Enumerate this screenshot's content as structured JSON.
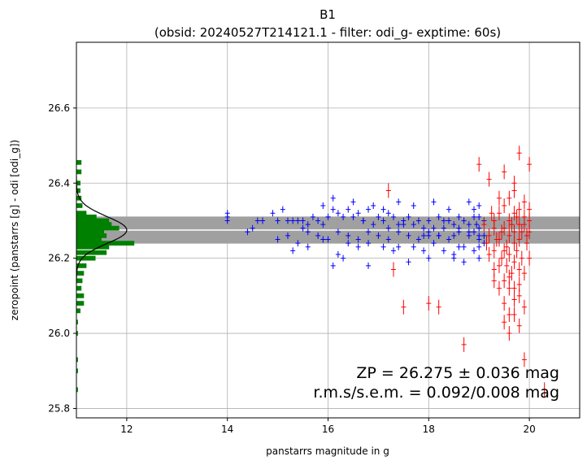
{
  "chart_data": {
    "type": "scatter",
    "title": "B1",
    "subtitle": "(obsid: 20240527T214121.1 - filter: odi_g- exptime: 60s)",
    "xlabel": "panstarrs magnitude in g",
    "ylabel": "zeropoint (panstarrs [g] - odi [odi_g])",
    "xlim": [
      11.0,
      21.0
    ],
    "ylim": [
      25.775,
      26.775
    ],
    "x_ticks": [
      12,
      14,
      16,
      18,
      20
    ],
    "y_ticks": [
      25.8,
      26.0,
      26.2,
      26.4,
      26.6
    ],
    "x_tick_labels": [
      "12",
      "14",
      "16",
      "18",
      "20"
    ],
    "y_tick_labels": [
      "25.8",
      "26.0",
      "26.2",
      "26.4",
      "26.6"
    ],
    "grid": true,
    "zp": 26.275,
    "zp_band": [
      26.239,
      26.311
    ],
    "annotations": {
      "zp_text": "ZP = 26.275 ± 0.036 mag",
      "rms_text": "r.m.s/s.e.m. = 0.092/0.008 mag"
    },
    "histogram": {
      "color": "#008000",
      "bin_width": 0.0125,
      "bins": [
        {
          "y": 25.85,
          "extent": 0.03
        },
        {
          "y": 25.9,
          "extent": 0.03
        },
        {
          "y": 25.93,
          "extent": 0.03
        },
        {
          "y": 26.0,
          "extent": 0.03
        },
        {
          "y": 26.03,
          "extent": 0.03
        },
        {
          "y": 26.06,
          "extent": 0.08
        },
        {
          "y": 26.08,
          "extent": 0.15
        },
        {
          "y": 26.1,
          "extent": 0.15
        },
        {
          "y": 26.12,
          "extent": 0.1
        },
        {
          "y": 26.14,
          "extent": 0.12
        },
        {
          "y": 26.16,
          "extent": 0.15
        },
        {
          "y": 26.18,
          "extent": 0.2
        },
        {
          "y": 26.2,
          "extent": 0.38
        },
        {
          "y": 26.215,
          "extent": 0.6
        },
        {
          "y": 26.23,
          "extent": 0.65
        },
        {
          "y": 26.24,
          "extent": 1.15
        },
        {
          "y": 26.25,
          "extent": 0.5
        },
        {
          "y": 26.26,
          "extent": 0.6
        },
        {
          "y": 26.27,
          "extent": 0.55
        },
        {
          "y": 26.28,
          "extent": 0.85
        },
        {
          "y": 26.29,
          "extent": 0.7
        },
        {
          "y": 26.3,
          "extent": 0.65
        },
        {
          "y": 26.31,
          "extent": 0.4
        },
        {
          "y": 26.32,
          "extent": 0.2
        },
        {
          "y": 26.34,
          "extent": 0.12
        },
        {
          "y": 26.36,
          "extent": 0.1
        },
        {
          "y": 26.38,
          "extent": 0.08
        },
        {
          "y": 26.4,
          "extent": 0.08
        },
        {
          "y": 26.43,
          "extent": 0.1
        },
        {
          "y": 26.455,
          "extent": 0.1
        }
      ]
    },
    "gaussian": {
      "mu": 26.275,
      "sigma": 0.036,
      "peak_extent": 1.0,
      "color": "#000000"
    },
    "series": [
      {
        "color": "#0000ff",
        "points": [
          [
            14.0,
            26.31
          ],
          [
            14.0,
            26.32
          ],
          [
            14.0,
            26.3
          ],
          [
            14.5,
            26.28
          ],
          [
            14.6,
            26.3
          ],
          [
            14.7,
            26.3
          ],
          [
            14.9,
            26.32
          ],
          [
            15.0,
            26.3
          ],
          [
            15.2,
            26.3
          ],
          [
            15.3,
            26.3
          ],
          [
            15.4,
            26.3
          ],
          [
            15.5,
            26.28
          ],
          [
            15.6,
            26.29
          ],
          [
            15.7,
            26.31
          ],
          [
            15.8,
            26.3
          ],
          [
            15.9,
            26.29
          ],
          [
            16.0,
            26.31
          ],
          [
            16.1,
            26.33
          ],
          [
            16.2,
            26.32
          ],
          [
            16.3,
            26.31
          ],
          [
            16.4,
            26.33
          ],
          [
            16.5,
            26.31
          ],
          [
            16.6,
            26.32
          ],
          [
            16.7,
            26.3
          ],
          [
            16.8,
            26.33
          ],
          [
            16.9,
            26.29
          ],
          [
            17.0,
            26.31
          ],
          [
            17.1,
            26.3
          ],
          [
            17.2,
            26.32
          ],
          [
            17.3,
            26.31
          ],
          [
            17.4,
            26.29
          ],
          [
            17.5,
            26.3
          ],
          [
            17.6,
            26.31
          ],
          [
            17.7,
            26.29
          ],
          [
            17.8,
            26.3
          ],
          [
            17.9,
            26.28
          ],
          [
            18.0,
            26.3
          ],
          [
            18.1,
            26.28
          ],
          [
            18.2,
            26.31
          ],
          [
            18.3,
            26.28
          ],
          [
            18.4,
            26.3
          ],
          [
            18.5,
            26.29
          ],
          [
            18.6,
            26.28
          ],
          [
            18.7,
            26.3
          ],
          [
            18.8,
            26.29
          ],
          [
            18.9,
            26.31
          ],
          [
            19.0,
            26.28
          ],
          [
            19.1,
            26.3
          ],
          [
            15.0,
            26.25
          ],
          [
            15.2,
            26.26
          ],
          [
            15.4,
            26.24
          ],
          [
            15.6,
            26.27
          ],
          [
            15.8,
            26.26
          ],
          [
            16.0,
            26.25
          ],
          [
            16.2,
            26.27
          ],
          [
            16.4,
            26.26
          ],
          [
            16.6,
            26.25
          ],
          [
            16.8,
            26.27
          ],
          [
            17.0,
            26.26
          ],
          [
            17.2,
            26.25
          ],
          [
            17.4,
            26.27
          ],
          [
            17.6,
            26.26
          ],
          [
            17.8,
            26.25
          ],
          [
            18.0,
            26.27
          ],
          [
            18.2,
            26.26
          ],
          [
            18.4,
            26.25
          ],
          [
            18.6,
            26.27
          ],
          [
            18.8,
            26.26
          ],
          [
            19.0,
            26.25
          ],
          [
            15.3,
            26.22
          ],
          [
            15.6,
            26.23
          ],
          [
            15.9,
            26.25
          ],
          [
            16.2,
            26.21
          ],
          [
            16.4,
            26.24
          ],
          [
            16.6,
            26.23
          ],
          [
            16.8,
            26.24
          ],
          [
            17.1,
            26.23
          ],
          [
            17.4,
            26.23
          ],
          [
            17.7,
            26.23
          ],
          [
            17.9,
            26.22
          ],
          [
            18.1,
            26.24
          ],
          [
            18.3,
            26.22
          ],
          [
            18.5,
            26.21
          ],
          [
            18.7,
            26.23
          ],
          [
            18.9,
            26.22
          ],
          [
            19.0,
            26.23
          ],
          [
            15.1,
            26.33
          ],
          [
            15.9,
            26.34
          ],
          [
            16.1,
            26.36
          ],
          [
            16.5,
            26.35
          ],
          [
            16.9,
            26.34
          ],
          [
            17.1,
            26.33
          ],
          [
            17.4,
            26.35
          ],
          [
            17.7,
            26.34
          ],
          [
            18.1,
            26.35
          ],
          [
            18.4,
            26.33
          ],
          [
            18.8,
            26.35
          ],
          [
            19.0,
            26.34
          ],
          [
            16.8,
            26.18
          ],
          [
            17.6,
            26.19
          ],
          [
            18.0,
            26.2
          ],
          [
            18.5,
            26.2
          ],
          [
            18.7,
            26.19
          ],
          [
            19.0,
            26.2
          ],
          [
            16.1,
            26.18
          ],
          [
            16.3,
            26.2
          ],
          [
            17.3,
            26.22
          ],
          [
            17.9,
            26.26
          ],
          [
            18.2,
            26.26
          ],
          [
            18.6,
            26.23
          ],
          [
            19.1,
            26.26
          ],
          [
            19.1,
            26.24
          ],
          [
            18.9,
            26.33
          ],
          [
            19.0,
            26.31
          ],
          [
            18.95,
            26.29
          ],
          [
            14.4,
            26.27
          ],
          [
            15.5,
            26.3
          ],
          [
            16.0,
            26.31
          ],
          [
            16.7,
            26.3
          ],
          [
            17.5,
            26.29
          ],
          [
            18.3,
            26.3
          ],
          [
            18.6,
            26.31
          ],
          [
            18.9,
            26.27
          ],
          [
            19.0,
            26.26
          ],
          [
            18.8,
            26.27
          ],
          [
            18.5,
            26.26
          ],
          [
            18.0,
            26.26
          ],
          [
            17.2,
            26.28
          ]
        ]
      },
      {
        "color": "#ff0000",
        "points": [
          [
            17.2,
            26.38
          ],
          [
            17.3,
            26.17
          ],
          [
            17.5,
            26.07
          ],
          [
            18.0,
            26.08
          ],
          [
            18.2,
            26.07
          ],
          [
            18.7,
            25.97
          ],
          [
            19.0,
            26.45
          ],
          [
            19.2,
            26.41
          ],
          [
            19.4,
            26.36
          ],
          [
            19.5,
            26.43
          ],
          [
            19.7,
            26.4
          ],
          [
            19.8,
            26.48
          ],
          [
            20.0,
            26.45
          ],
          [
            19.3,
            26.17
          ],
          [
            19.4,
            26.12
          ],
          [
            19.6,
            26.15
          ],
          [
            19.7,
            26.12
          ],
          [
            19.5,
            26.08
          ],
          [
            19.6,
            26.05
          ],
          [
            19.8,
            26.02
          ],
          [
            19.9,
            25.93
          ],
          [
            20.3,
            25.85
          ],
          [
            19.6,
            26.0
          ],
          [
            19.5,
            26.03
          ],
          [
            19.7,
            26.05
          ],
          [
            19.8,
            26.1
          ],
          [
            19.9,
            26.07
          ],
          [
            19.3,
            26.22
          ],
          [
            19.4,
            26.25
          ],
          [
            19.5,
            26.28
          ],
          [
            19.6,
            26.3
          ],
          [
            19.7,
            26.27
          ],
          [
            19.8,
            26.25
          ],
          [
            19.9,
            26.29
          ],
          [
            20.0,
            26.3
          ],
          [
            19.2,
            26.26
          ],
          [
            19.3,
            26.3
          ],
          [
            19.4,
            26.32
          ],
          [
            19.5,
            26.34
          ],
          [
            19.6,
            26.36
          ],
          [
            19.7,
            26.38
          ],
          [
            19.8,
            26.33
          ],
          [
            19.9,
            26.35
          ],
          [
            20.0,
            26.27
          ],
          [
            19.1,
            26.29
          ],
          [
            19.15,
            26.24
          ],
          [
            19.3,
            26.28
          ],
          [
            19.45,
            26.2
          ],
          [
            19.55,
            26.18
          ],
          [
            19.65,
            26.16
          ],
          [
            19.75,
            26.22
          ],
          [
            19.85,
            26.2
          ],
          [
            19.95,
            26.24
          ],
          [
            19.25,
            26.32
          ],
          [
            19.35,
            26.25
          ],
          [
            19.45,
            26.27
          ],
          [
            19.55,
            26.23
          ],
          [
            19.65,
            26.29
          ],
          [
            19.75,
            26.31
          ],
          [
            19.85,
            26.27
          ],
          [
            19.95,
            26.26
          ],
          [
            19.6,
            26.12
          ],
          [
            19.7,
            26.09
          ],
          [
            19.5,
            26.14
          ],
          [
            19.8,
            26.13
          ],
          [
            19.4,
            26.18
          ],
          [
            19.6,
            26.21
          ],
          [
            19.7,
            26.19
          ],
          [
            19.9,
            26.16
          ],
          [
            20.0,
            26.2
          ],
          [
            19.2,
            26.21
          ],
          [
            19.3,
            26.14
          ],
          [
            19.5,
            26.22
          ],
          [
            19.7,
            26.24
          ],
          [
            19.8,
            26.17
          ],
          [
            19.6,
            26.26
          ],
          [
            19.7,
            26.32
          ],
          [
            19.9,
            26.31
          ],
          [
            20.0,
            26.33
          ],
          [
            19.8,
            26.29
          ]
        ]
      }
    ]
  }
}
